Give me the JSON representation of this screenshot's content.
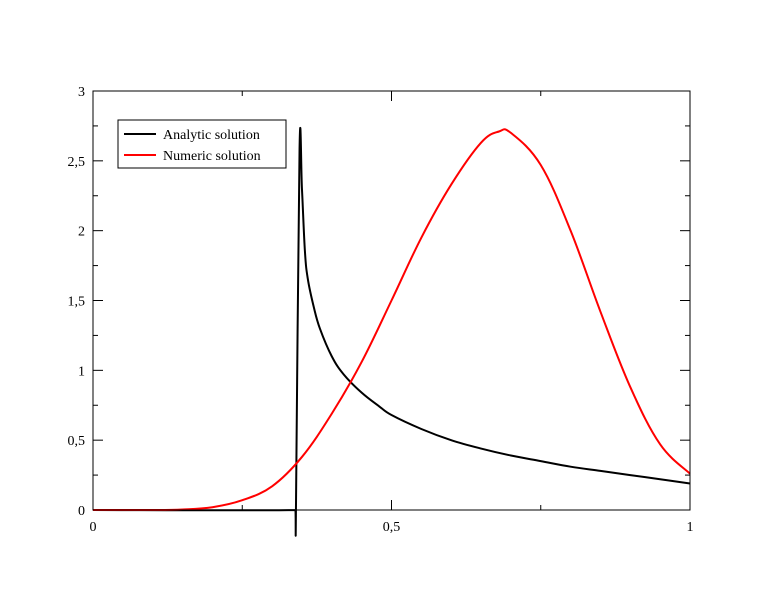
{
  "chart_data": {
    "type": "line",
    "title": "",
    "xlabel": "",
    "ylabel": "",
    "xlim": [
      0,
      1
    ],
    "ylim": [
      0,
      3
    ],
    "x_ticks": [
      0,
      0.5,
      1
    ],
    "x_tick_labels": [
      "0",
      "0,5",
      "1"
    ],
    "y_ticks": [
      0,
      0.5,
      1,
      1.5,
      2,
      2.5,
      3
    ],
    "y_tick_labels": [
      "0",
      "0,5",
      "1",
      "1,5",
      "2",
      "2,5",
      "3"
    ],
    "x_minor_step": 0.25,
    "y_minor_step": 0.25,
    "grid": false,
    "legend_position": "top-left",
    "series": [
      {
        "name": "Analytic solution",
        "color": "#000000",
        "x": [
          0,
          0.339,
          0.34,
          0.346,
          0.35,
          0.355,
          0.36,
          0.37,
          0.38,
          0.4,
          0.42,
          0.45,
          0.48,
          0.5,
          0.55,
          0.6,
          0.65,
          0.7,
          0.75,
          0.8,
          0.85,
          0.9,
          0.95,
          1.0
        ],
        "y": [
          0,
          0,
          0.03,
          2.59,
          2.3,
          1.85,
          1.65,
          1.45,
          1.3,
          1.1,
          0.97,
          0.84,
          0.74,
          0.68,
          0.58,
          0.5,
          0.44,
          0.39,
          0.35,
          0.31,
          0.28,
          0.25,
          0.22,
          0.19
        ]
      },
      {
        "name": "Numeric solution",
        "color": "#ff0000",
        "x": [
          0,
          0.1,
          0.15,
          0.2,
          0.25,
          0.3,
          0.35,
          0.4,
          0.45,
          0.5,
          0.55,
          0.6,
          0.65,
          0.68,
          0.7,
          0.75,
          0.8,
          0.85,
          0.9,
          0.95,
          1.0
        ],
        "y": [
          0,
          0,
          0.004,
          0.02,
          0.07,
          0.17,
          0.38,
          0.69,
          1.06,
          1.5,
          1.95,
          2.33,
          2.63,
          2.71,
          2.7,
          2.47,
          2.0,
          1.42,
          0.88,
          0.47,
          0.26
        ]
      }
    ]
  }
}
